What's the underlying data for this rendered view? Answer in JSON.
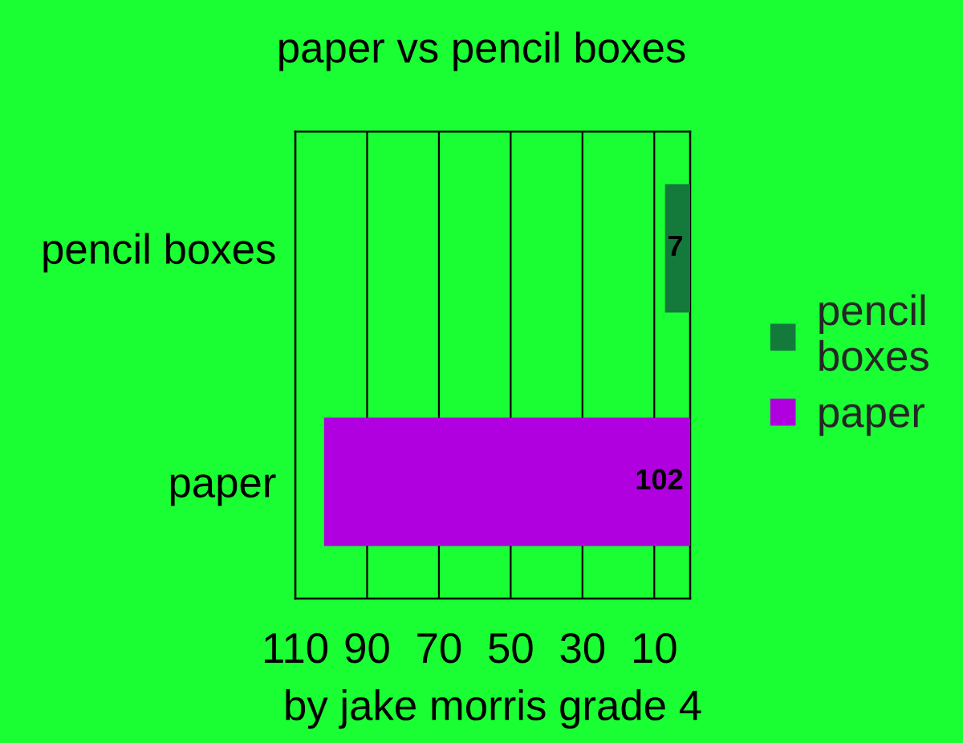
{
  "chart_data": {
    "type": "bar",
    "orientation": "horizontal",
    "title": "paper vs pencil boxes",
    "xlabel": "by jake morris grade 4",
    "categories": [
      "pencil boxes",
      "paper"
    ],
    "series": [
      {
        "name": "pencil boxes",
        "color": "#137a3c",
        "values": [
          7,
          null
        ]
      },
      {
        "name": "paper",
        "color": "#b000e0",
        "values": [
          null,
          102
        ]
      }
    ],
    "xlim": [
      110,
      0
    ],
    "xticks": [
      110,
      90,
      70,
      50,
      30,
      10
    ],
    "grid": "x",
    "legend": "right",
    "data_labels": true
  }
}
